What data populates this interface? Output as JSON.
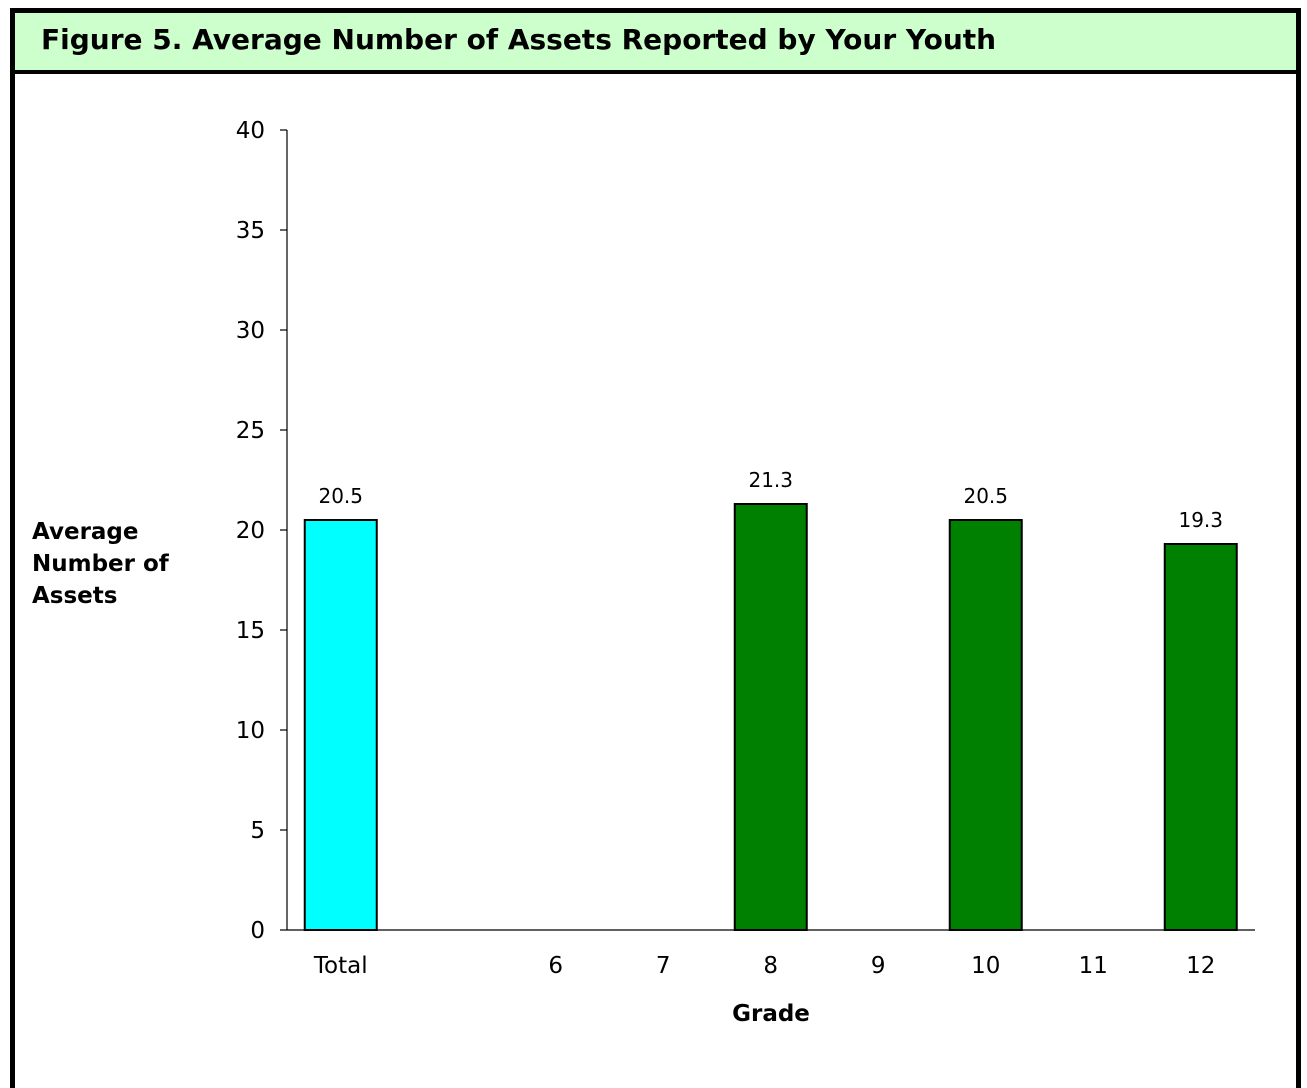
{
  "figure": {
    "title": "Figure 5.  Average Number of Assets Reported by Your Youth"
  },
  "colors": {
    "title_background": "#ccffcc",
    "total_bar": "#00ffff",
    "grade_bar": "#008000",
    "border": "#000000"
  },
  "chart_data": {
    "type": "bar",
    "title": "Figure 5.  Average Number of Assets Reported by Your Youth",
    "xlabel": "Grade",
    "ylabel_lines": [
      "Average",
      "Number of",
      "Assets"
    ],
    "categories": [
      "Total",
      "6",
      "7",
      "8",
      "9",
      "10",
      "11",
      "12"
    ],
    "values": [
      20.5,
      null,
      null,
      21.3,
      null,
      20.5,
      null,
      19.3
    ],
    "data_labels": [
      "20.5",
      "",
      "",
      "21.3",
      "",
      "20.5",
      "",
      "19.3"
    ],
    "bar_colors": [
      "#00ffff",
      "#008000",
      "#008000",
      "#008000",
      "#008000",
      "#008000",
      "#008000",
      "#008000"
    ],
    "ylim": [
      0,
      40
    ],
    "yticks": [
      0,
      5,
      10,
      15,
      20,
      25,
      30,
      35,
      40
    ],
    "grid": false,
    "legend": "none"
  }
}
